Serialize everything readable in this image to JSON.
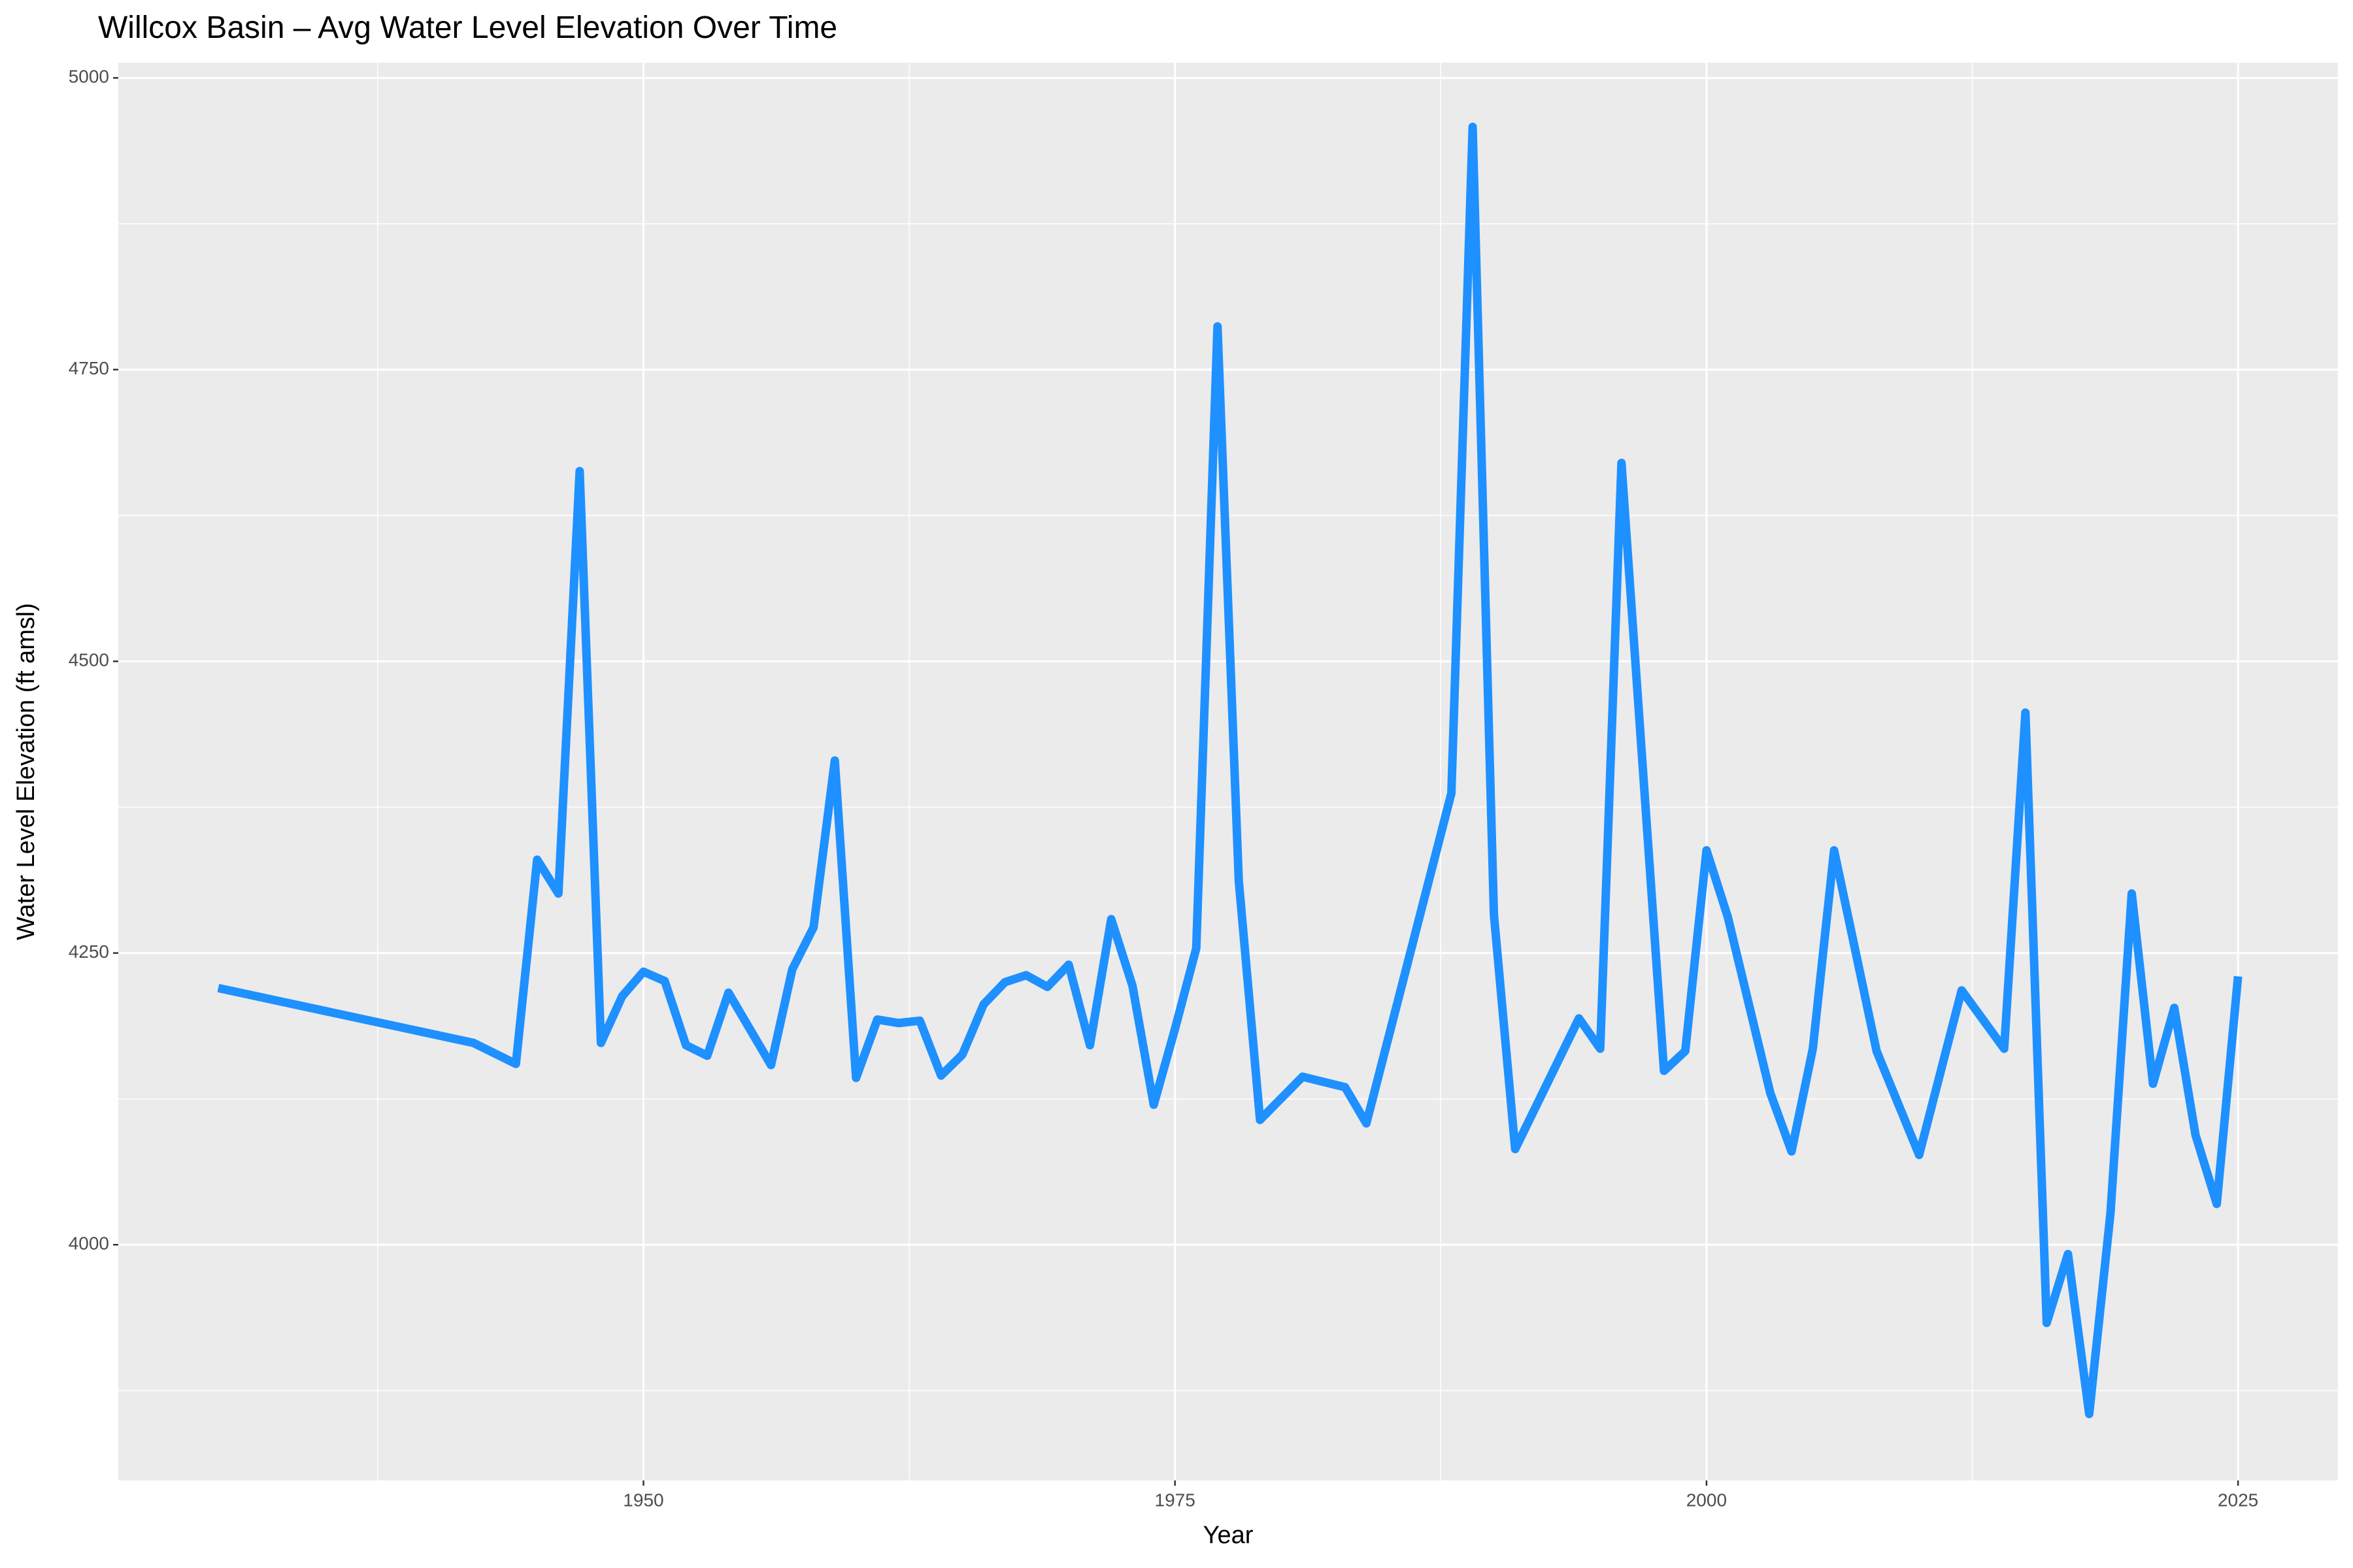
{
  "chart_data": {
    "type": "line",
    "title": "Willcox Basin – Avg Water Level Elevation Over Time",
    "x_label": "Year",
    "y_label": "Water Level Elevation (ft amsl)",
    "color": "#1e90ff",
    "grid": true,
    "x": [
      1930,
      1942,
      1944,
      1945,
      1946,
      1947,
      1948,
      1949,
      1950,
      1951,
      1952,
      1953,
      1954,
      1956,
      1957,
      1958,
      1959,
      1960,
      1961,
      1962,
      1963,
      1964,
      1965,
      1966,
      1967,
      1968,
      1969,
      1970,
      1971,
      1972,
      1973,
      1974,
      1975,
      1976,
      1977,
      1978,
      1979,
      1981,
      1983,
      1984,
      1988,
      1989,
      1990,
      1991,
      1994,
      1995,
      1996,
      1998,
      1999,
      2000,
      2001,
      2003,
      2004,
      2005,
      2006,
      2008,
      2010,
      2012,
      2014,
      2015,
      2016,
      2017,
      2018,
      2019,
      2020,
      2021,
      2022,
      2023,
      2024,
      2025
    ],
    "values": [
      4220,
      4173,
      4155,
      4330,
      4301,
      4663,
      4173,
      4213,
      4234,
      4226,
      4171,
      4162,
      4216,
      4154,
      4236,
      4272,
      4415,
      4143,
      4193,
      4190,
      4192,
      4145,
      4163,
      4206,
      4225,
      4231,
      4221,
      4240,
      4171,
      4279,
      4222,
      4120,
      4185,
      4254,
      4787,
      4312,
      4107,
      4144,
      4135,
      4104,
      4387,
      4958,
      4283,
      4082,
      4194,
      4168,
      4670,
      4149,
      4166,
      4338,
      4281,
      4130,
      4080,
      4168,
      4338,
      4166,
      4077,
      4218,
      4168,
      4456,
      3933,
      3992,
      3855,
      4027,
      4301,
      4138,
      4203,
      4094,
      4035,
      4230
    ],
    "xlim": [
      1925.3,
      2029.7
    ],
    "xticks": [
      1950,
      1975,
      2000,
      2025
    ],
    "ylim": [
      3798,
      5013
    ],
    "yticks": [
      4000,
      4250,
      4500,
      4750,
      5000
    ]
  }
}
